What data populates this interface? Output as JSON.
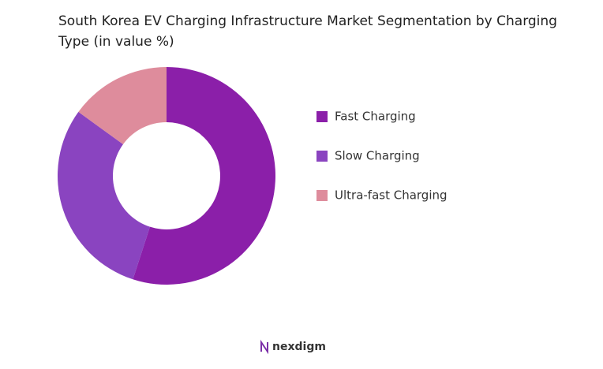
{
  "chart_data": {
    "type": "donut",
    "title": "South Korea EV Charging Infrastructure Market Segmentation by Charging Type (in value %)",
    "categories": [
      "Fast Charging",
      "Slow Charging",
      "Ultra-fast Charging"
    ],
    "values": [
      55,
      30,
      15
    ],
    "colors": [
      "#8b1fa9",
      "#8a44c0",
      "#de8c9c"
    ],
    "legend": "right"
  },
  "footer": {
    "logo": "nexdigm"
  }
}
